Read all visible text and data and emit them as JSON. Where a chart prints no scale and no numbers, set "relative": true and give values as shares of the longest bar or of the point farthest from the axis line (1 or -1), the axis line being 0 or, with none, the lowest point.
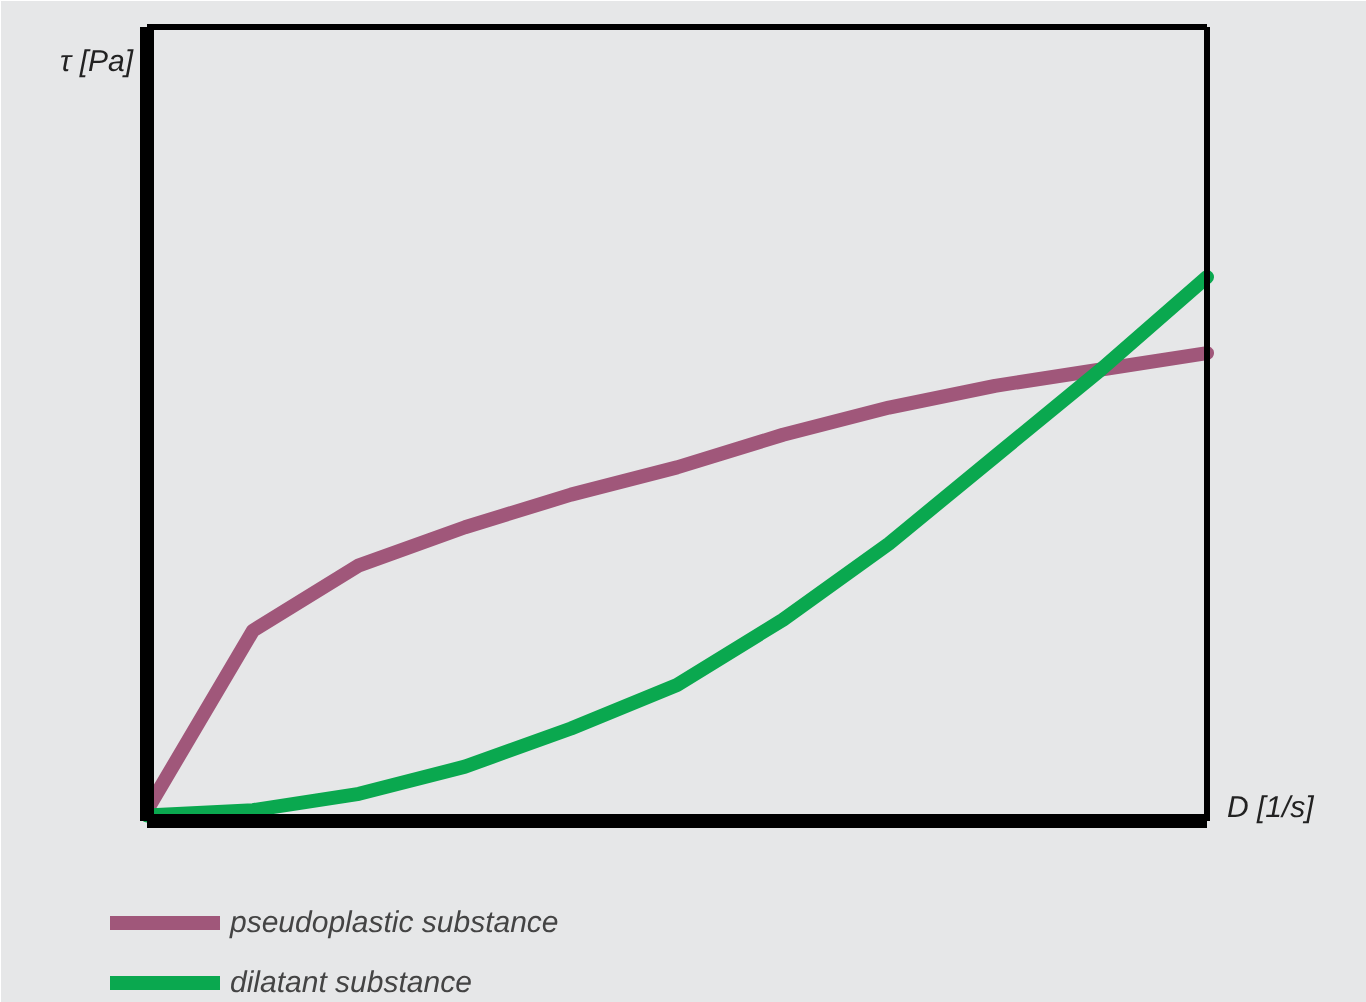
{
  "chart_data": {
    "type": "line",
    "relative": true,
    "xlabel": "D [1/s]",
    "annotations": [
      "τ [Pa]"
    ],
    "categories": [
      null,
      null,
      null,
      null,
      null,
      null,
      null,
      null,
      null,
      null,
      null
    ],
    "series": [
      {
        "name": "pseudoplastic substance",
        "color": "#a0577a",
        "values": [
          0.02,
          0.35,
          0.47,
          0.54,
          0.6,
          0.65,
          0.71,
          0.76,
          0.8,
          0.83,
          0.86
        ]
      },
      {
        "name": "dilatant substance",
        "color": "#0aa84f",
        "values": [
          0.01,
          0.02,
          0.05,
          0.1,
          0.17,
          0.25,
          0.37,
          0.51,
          0.67,
          0.83,
          1.0
        ]
      }
    ],
    "legend": "bottom",
    "marker": "none",
    "line_style": "solid"
  }
}
